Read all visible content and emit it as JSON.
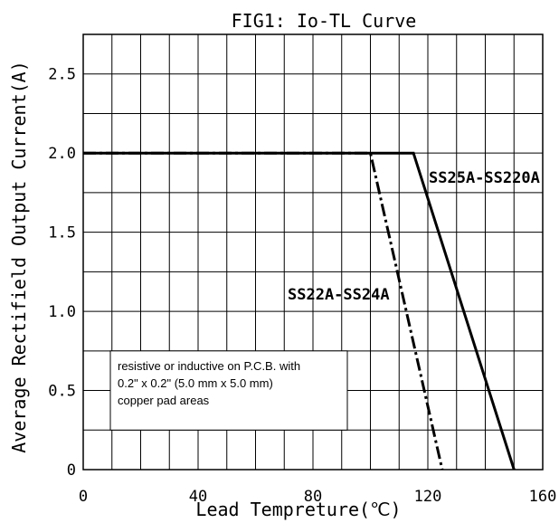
{
  "chart_data": {
    "type": "line",
    "title": "FIG1: Io-TL Curve",
    "xlabel": "Lead Tempreture(℃)",
    "ylabel": "Average Rectifield Output Current(A)",
    "xlim": [
      0,
      160
    ],
    "ylim": [
      0,
      2.75
    ],
    "x_ticks": [
      {
        "value": 0,
        "label": "0"
      },
      {
        "value": 40,
        "label": "40"
      },
      {
        "value": 80,
        "label": "80"
      },
      {
        "value": 120,
        "label": "120"
      },
      {
        "value": 160,
        "label": "160"
      }
    ],
    "y_ticks": [
      {
        "value": 0,
        "label": "0"
      },
      {
        "value": 0.5,
        "label": "0.5"
      },
      {
        "value": 1.0,
        "label": "1.0"
      },
      {
        "value": 1.5,
        "label": "1.5"
      },
      {
        "value": 2.0,
        "label": "2.0"
      },
      {
        "value": 2.5,
        "label": "2.5"
      }
    ],
    "grid": true,
    "series": [
      {
        "name": "SS25A-SS220A",
        "style": "solid",
        "points": [
          [
            0,
            2.0
          ],
          [
            115,
            2.0
          ],
          [
            150,
            0
          ]
        ]
      },
      {
        "name": "SS22A-SS24A",
        "style": "dash-dot",
        "points": [
          [
            0,
            2.0
          ],
          [
            100,
            2.0
          ],
          [
            125,
            0
          ]
        ]
      }
    ],
    "annotation": {
      "lines": [
        "resistive or inductive on P.C.B. with",
        "0.2\" x 0.2\" (5.0 mm x 5.0 mm)",
        "copper pad areas"
      ]
    },
    "colors": {
      "line": "#000000",
      "grid": "#000000",
      "background": "#ffffff"
    }
  }
}
